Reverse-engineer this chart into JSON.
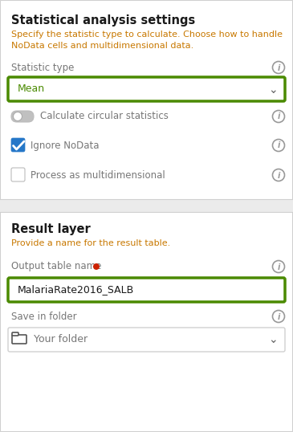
{
  "overall_bg": "#f0f0f0",
  "panel1_bg": "#ffffff",
  "panel2_bg": "#ffffff",
  "separator_bg": "#eeeeee",
  "border_color": "#d0d0d0",
  "green_border": "#4a8a00",
  "title1": "Statistical analysis settings",
  "subtitle1_line1": "Specify the statistic type to calculate. Choose how to handle",
  "subtitle1_line2": "NoData cells and multidimensional data.",
  "label_statistic": "Statistic type",
  "dropdown_mean": "Mean",
  "label_circular": "Calculate circular statistics",
  "label_nodata": "Ignore NoData",
  "label_multi": "Process as multidimensional",
  "title2": "Result layer",
  "subtitle2": "Provide a name for the result table.",
  "label_output": "Output table name",
  "input_value": "MalariaRate2016_SALB",
  "label_folder": "Save in folder",
  "dropdown_folder": "Your folder",
  "title_color": "#1a1a1a",
  "subtitle_color": "#c87800",
  "label_color": "#777777",
  "green_text": "#4a8a00",
  "info_color": "#999999",
  "red_dot_color": "#cc2200",
  "toggle_off_track": "#c0c0c0",
  "toggle_knob": "#ffffff",
  "checkbox_blue": "#2577c8",
  "folder_color": "#555555",
  "arrow_color": "#666666"
}
